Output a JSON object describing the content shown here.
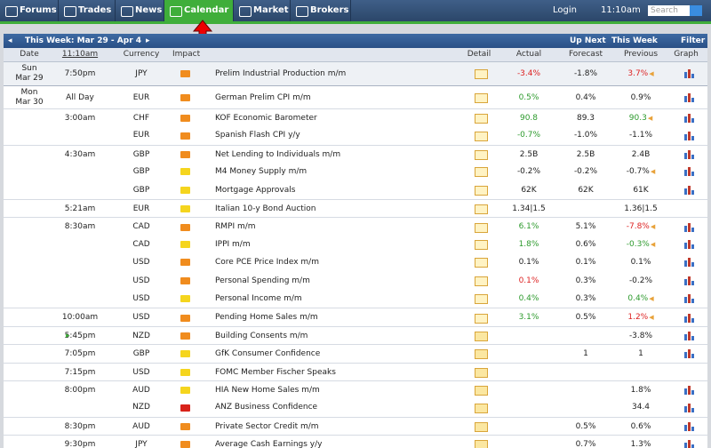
{
  "nav": {
    "tabs": [
      {
        "label": "Forums"
      },
      {
        "label": "Trades"
      },
      {
        "label": "News"
      },
      {
        "label": "Calendar",
        "active": true
      },
      {
        "label": "Market"
      },
      {
        "label": "Brokers"
      }
    ],
    "login": "Login",
    "time": "11:10am",
    "search_placeholder": "Search"
  },
  "toolbar": {
    "week": "This Week: Mar 29 - Apr 4",
    "up_next": "Up Next",
    "this_week": "This Week",
    "filter": "Filter"
  },
  "headers": {
    "date": "Date",
    "time": "11:10am",
    "currency": "Currency",
    "impact": "Impact",
    "detail": "Detail",
    "actual": "Actual",
    "forecast": "Forecast",
    "previous": "Previous",
    "graph": "Graph"
  },
  "rows": [
    {
      "date": "Sun",
      "date2": "Mar 29",
      "time": "7:50pm",
      "currency": "JPY",
      "impact": "orange",
      "event": "Prelim Industrial Production m/m",
      "actual": "-3.4%",
      "actual_tone": "worse",
      "forecast": "-1.8%",
      "previous": "3.7%",
      "previous_tone": "worse",
      "previous_revised": true,
      "graph": true
    },
    {
      "date": "Mon",
      "date2": "Mar 30",
      "time": "All Day",
      "currency": "EUR",
      "impact": "orange",
      "event": "German Prelim CPI m/m",
      "actual": "0.5%",
      "actual_tone": "better",
      "forecast": "0.4%",
      "previous": "0.9%",
      "graph": true
    },
    {
      "time": "3:00am",
      "currency": "CHF",
      "impact": "orange",
      "event": "KOF Economic Barometer",
      "actual": "90.8",
      "actual_tone": "better",
      "forecast": "89.3",
      "previous": "90.3",
      "previous_tone": "better",
      "previous_revised": true,
      "graph": true
    },
    {
      "currency": "EUR",
      "impact": "orange",
      "event": "Spanish Flash CPI y/y",
      "actual": "-0.7%",
      "actual_tone": "better",
      "forecast": "-1.0%",
      "previous": "-1.1%",
      "graph": true
    },
    {
      "time": "4:30am",
      "currency": "GBP",
      "impact": "orange",
      "event": "Net Lending to Individuals m/m",
      "actual": "2.5B",
      "forecast": "2.5B",
      "previous": "2.4B",
      "graph": true
    },
    {
      "currency": "GBP",
      "impact": "yellow",
      "event": "M4 Money Supply m/m",
      "actual": "-0.2%",
      "forecast": "-0.2%",
      "previous": "-0.7%",
      "previous_revised": true,
      "graph": true
    },
    {
      "currency": "GBP",
      "impact": "yellow",
      "event": "Mortgage Approvals",
      "actual": "62K",
      "forecast": "62K",
      "previous": "61K",
      "graph": true
    },
    {
      "time": "5:21am",
      "currency": "EUR",
      "impact": "yellow",
      "event": "Italian 10-y Bond Auction",
      "actual": "1.34|1.5",
      "previous": "1.36|1.5"
    },
    {
      "time": "8:30am",
      "currency": "CAD",
      "impact": "orange",
      "event": "RMPI m/m",
      "actual": "6.1%",
      "actual_tone": "better",
      "forecast": "5.1%",
      "previous": "-7.8%",
      "previous_tone": "worse",
      "previous_revised": true,
      "graph": true
    },
    {
      "currency": "CAD",
      "impact": "yellow",
      "event": "IPPI m/m",
      "actual": "1.8%",
      "actual_tone": "better",
      "forecast": "0.6%",
      "previous": "-0.3%",
      "previous_tone": "better",
      "previous_revised": true,
      "graph": true
    },
    {
      "currency": "USD",
      "impact": "orange",
      "event": "Core PCE Price Index m/m",
      "actual": "0.1%",
      "forecast": "0.1%",
      "previous": "0.1%",
      "graph": true
    },
    {
      "currency": "USD",
      "impact": "orange",
      "event": "Personal Spending m/m",
      "actual": "0.1%",
      "actual_tone": "worse",
      "forecast": "0.3%",
      "previous": "-0.2%",
      "graph": true
    },
    {
      "currency": "USD",
      "impact": "yellow",
      "event": "Personal Income m/m",
      "actual": "0.4%",
      "actual_tone": "better",
      "forecast": "0.3%",
      "previous": "0.4%",
      "previous_tone": "better",
      "previous_revised": true,
      "graph": true
    },
    {
      "time": "10:00am",
      "currency": "USD",
      "impact": "orange",
      "event": "Pending Home Sales m/m",
      "actual": "3.1%",
      "actual_tone": "better",
      "forecast": "0.5%",
      "previous": "1.2%",
      "previous_tone": "worse",
      "previous_revised": true,
      "graph": true
    },
    {
      "time": "5:45pm",
      "upcoming": true,
      "currency": "NZD",
      "impact": "orange",
      "event": "Building Consents m/m",
      "previous": "-3.8%",
      "graph": true
    },
    {
      "time": "7:05pm",
      "currency": "GBP",
      "impact": "yellow",
      "event": "GfK Consumer Confidence",
      "forecast": "1",
      "previous": "1",
      "graph": true
    },
    {
      "time": "7:15pm",
      "currency": "USD",
      "impact": "yellow",
      "event": "FOMC Member Fischer Speaks"
    },
    {
      "time": "8:00pm",
      "currency": "AUD",
      "impact": "yellow",
      "event": "HIA New Home Sales m/m",
      "previous": "1.8%",
      "graph": true
    },
    {
      "currency": "NZD",
      "impact": "red",
      "event": "ANZ Business Confidence",
      "previous": "34.4",
      "graph": true
    },
    {
      "time": "8:30pm",
      "currency": "AUD",
      "impact": "orange",
      "event": "Private Sector Credit m/m",
      "forecast": "0.5%",
      "previous": "0.6%",
      "graph": true
    },
    {
      "time": "9:30pm",
      "currency": "JPY",
      "impact": "orange",
      "event": "Average Cash Earnings y/y",
      "forecast": "0.7%",
      "previous": "1.3%",
      "graph": true
    }
  ]
}
